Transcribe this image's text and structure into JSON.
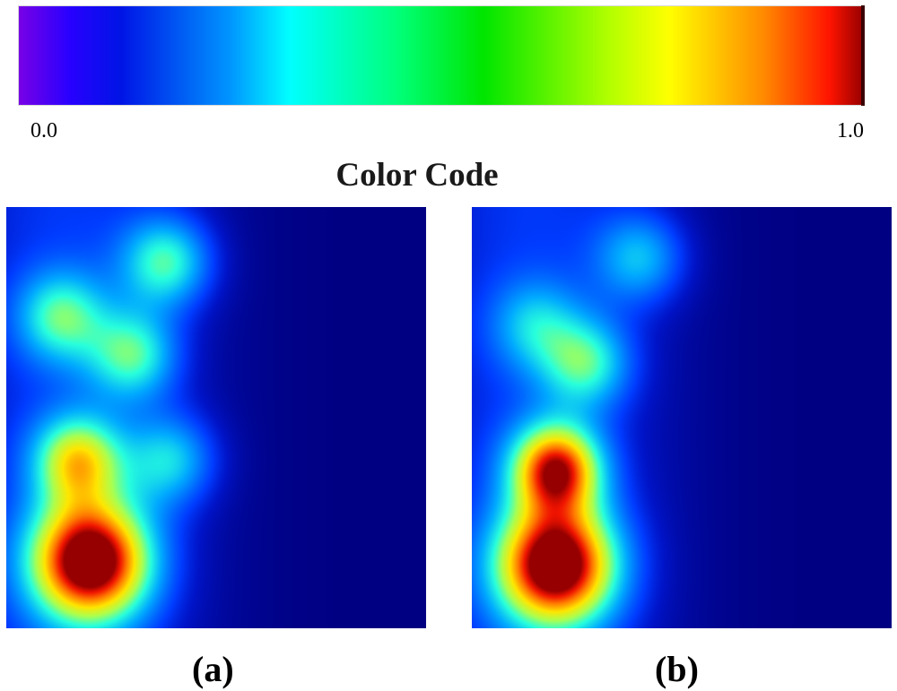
{
  "colorbar": {
    "min_label": "0.0",
    "max_label": "1.0",
    "title": "Color Code"
  },
  "chart_data": [
    {
      "type": "heatmap",
      "panel": "a",
      "caption": "(a)",
      "colormap": "jet",
      "value_range": [
        0.0,
        1.0
      ],
      "hotspots": [
        {
          "x": 0.2,
          "y": 0.84,
          "peak": 1.0
        },
        {
          "x": 0.17,
          "y": 0.6,
          "peak": 0.55
        },
        {
          "x": 0.3,
          "y": 0.35,
          "peak": 0.4
        },
        {
          "x": 0.38,
          "y": 0.13,
          "peak": 0.42
        },
        {
          "x": 0.13,
          "y": 0.26,
          "peak": 0.38
        },
        {
          "x": 0.39,
          "y": 0.6,
          "peak": 0.33
        }
      ]
    },
    {
      "type": "heatmap",
      "panel": "b",
      "caption": "(b)",
      "colormap": "jet",
      "value_range": [
        0.0,
        1.0
      ],
      "hotspots": [
        {
          "x": 0.2,
          "y": 0.85,
          "peak": 1.0
        },
        {
          "x": 0.2,
          "y": 0.62,
          "peak": 0.8
        },
        {
          "x": 0.27,
          "y": 0.37,
          "peak": 0.38
        },
        {
          "x": 0.4,
          "y": 0.12,
          "peak": 0.3
        },
        {
          "x": 0.15,
          "y": 0.28,
          "peak": 0.25
        }
      ]
    }
  ]
}
